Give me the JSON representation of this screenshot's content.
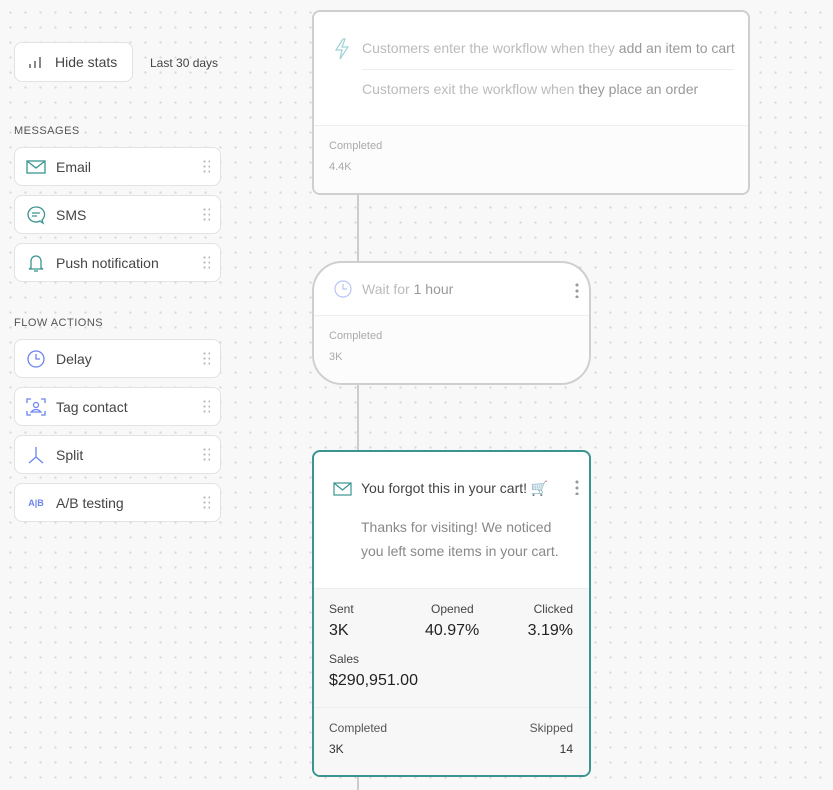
{
  "sidebar": {
    "hide_stats": "Hide stats",
    "range": "Last 30 days",
    "messages_title": "MESSAGES",
    "messages": [
      {
        "label": "Email",
        "icon": "email-icon"
      },
      {
        "label": "SMS",
        "icon": "sms-icon"
      },
      {
        "label": "Push notification",
        "icon": "bell-icon"
      }
    ],
    "actions_title": "FLOW ACTIONS",
    "actions": [
      {
        "label": "Delay",
        "icon": "clock-icon"
      },
      {
        "label": "Tag contact",
        "icon": "tag-contact-icon"
      },
      {
        "label": "Split",
        "icon": "split-icon"
      },
      {
        "label": "A/B testing",
        "icon": "ab-icon"
      }
    ]
  },
  "trigger": {
    "enter_prefix": "Customers enter the workflow when they ",
    "enter_strong": "add an item to cart",
    "exit_prefix": "Customers exit the workflow when ",
    "exit_strong": "they place an order",
    "completed_label": "Completed",
    "completed": "4.4K"
  },
  "delay": {
    "prefix": "Wait for ",
    "strong": "1 hour",
    "completed_label": "Completed",
    "completed": "3K"
  },
  "email": {
    "subject": "You forgot this in your cart! 🛒",
    "body": "Thanks for visiting! We noticed you left some items in your cart.",
    "sent_label": "Sent",
    "sent": "3K",
    "opened_label": "Opened",
    "opened": "40.97%",
    "clicked_label": "Clicked",
    "clicked": "3.19%",
    "sales_label": "Sales",
    "sales": "$290,951.00",
    "completed_label": "Completed",
    "completed": "3K",
    "skipped_label": "Skipped",
    "skipped": "14"
  },
  "colors": {
    "teal": "#3a9490",
    "blue": "#6b84f0"
  }
}
